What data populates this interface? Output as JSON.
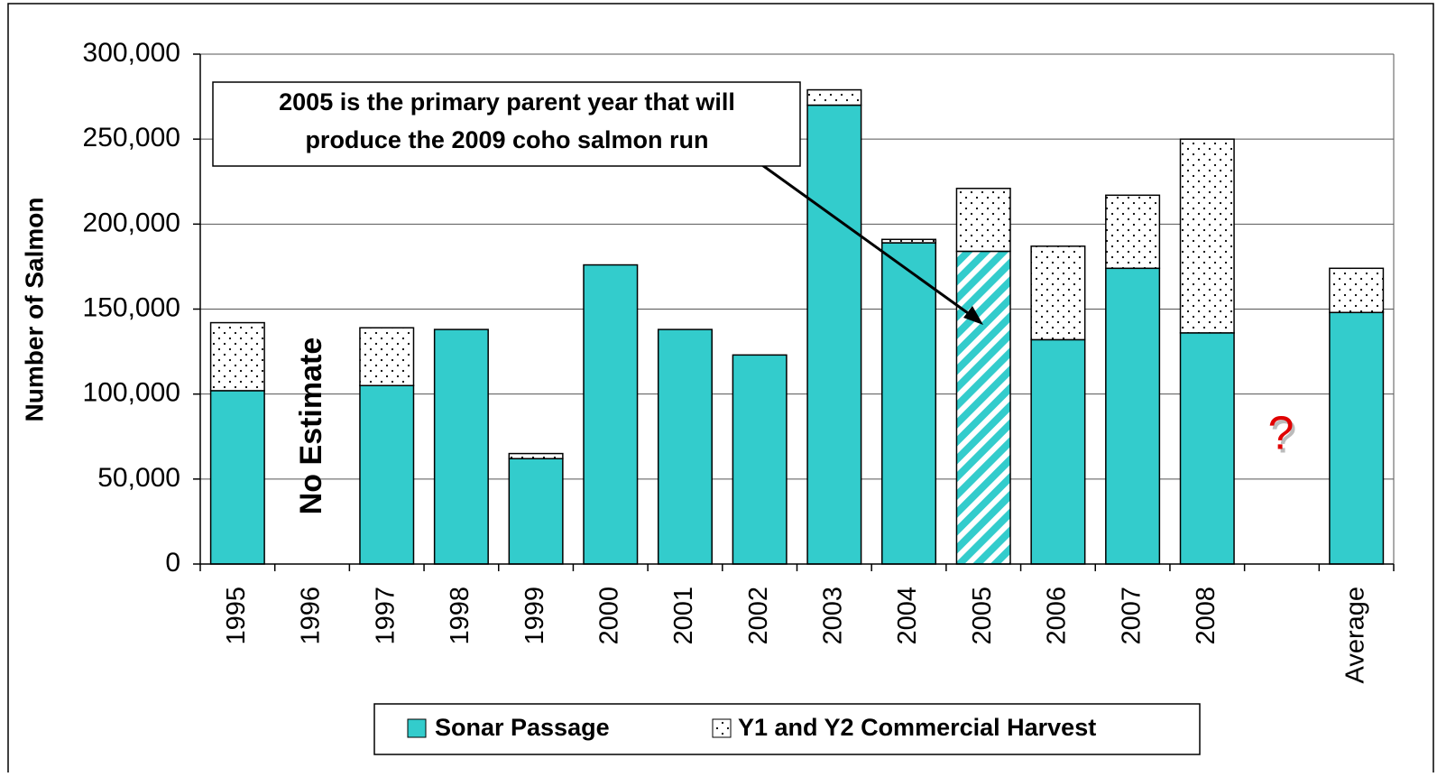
{
  "chart_data": {
    "type": "stacked_bar",
    "y_label": "Number of Salmon",
    "categories": [
      "1995",
      "1996",
      "1997",
      "1998",
      "1999",
      "2000",
      "2001",
      "2002",
      "2003",
      "2004",
      "2005",
      "2006",
      "2007",
      "2008",
      null,
      "Average"
    ],
    "series": [
      {
        "name": "Sonar Passage",
        "color": "#33cccc",
        "pattern": "solid",
        "values": [
          102000,
          null,
          105000,
          138000,
          62000,
          176000,
          138000,
          123000,
          270000,
          189000,
          184000,
          132000,
          174000,
          136000,
          null,
          148000
        ]
      },
      {
        "name": "Y1 and Y2 Commercial Harvest",
        "color": "#ffffff",
        "pattern": "dots",
        "values": [
          40000,
          null,
          34000,
          0,
          3000,
          0,
          0,
          0,
          9000,
          2000,
          37000,
          55000,
          43000,
          114000,
          null,
          26000
        ]
      }
    ],
    "hatched_category": "2005",
    "ylim": [
      0,
      300000
    ],
    "yticks": [
      0,
      {
        "value": 50000,
        "label": "50,000"
      },
      {
        "value": 100000,
        "label": "100,000"
      },
      {
        "value": 150000,
        "label": "150,000"
      },
      {
        "value": 200000,
        "label": "200,000"
      },
      {
        "value": 250000,
        "label": "250,000"
      },
      {
        "value": 300000,
        "label": "300,000"
      }
    ],
    "grid": true,
    "annotation": [
      "2005 is the primary parent year that will",
      "produce the 2009 coho salmon run"
    ],
    "no_estimate": "No Estimate",
    "unknown_mark": "?",
    "legend": "bottom"
  }
}
